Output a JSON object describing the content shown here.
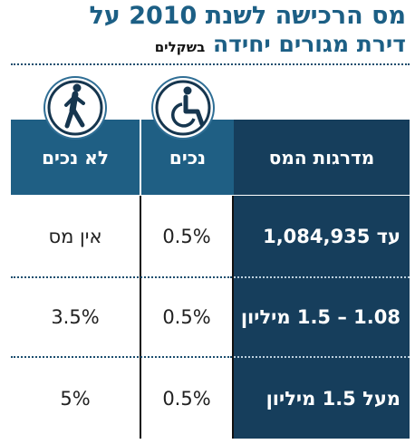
{
  "title": {
    "line1": "מס הרכישה לשנת 2010 על",
    "line2": "דירת מגורים יחידה",
    "units": "בשקלים"
  },
  "columns": [
    {
      "key": "brackets",
      "label": "מדרגות המס"
    },
    {
      "key": "disabled",
      "label": "נכים",
      "icon": "wheelchair-icon"
    },
    {
      "key": "not_disabled",
      "label": "לא נכים",
      "icon": "walking-person-icon"
    }
  ],
  "rows": [
    {
      "bracket": "עד 1,084,935",
      "disabled": "0.5%",
      "not_disabled": "אין מס"
    },
    {
      "bracket": "1.08 – 1.5 מיליון",
      "disabled": "0.5%",
      "not_disabled": "3.5%"
    },
    {
      "bracket": "מעל 1.5 מיליון",
      "disabled": "0.5%",
      "not_disabled": "5%"
    }
  ],
  "colors": {
    "title": "#1c5f85",
    "header": "#1f5f84",
    "dark_column": "#163e5c",
    "icon_circle": "#2f6e95"
  }
}
